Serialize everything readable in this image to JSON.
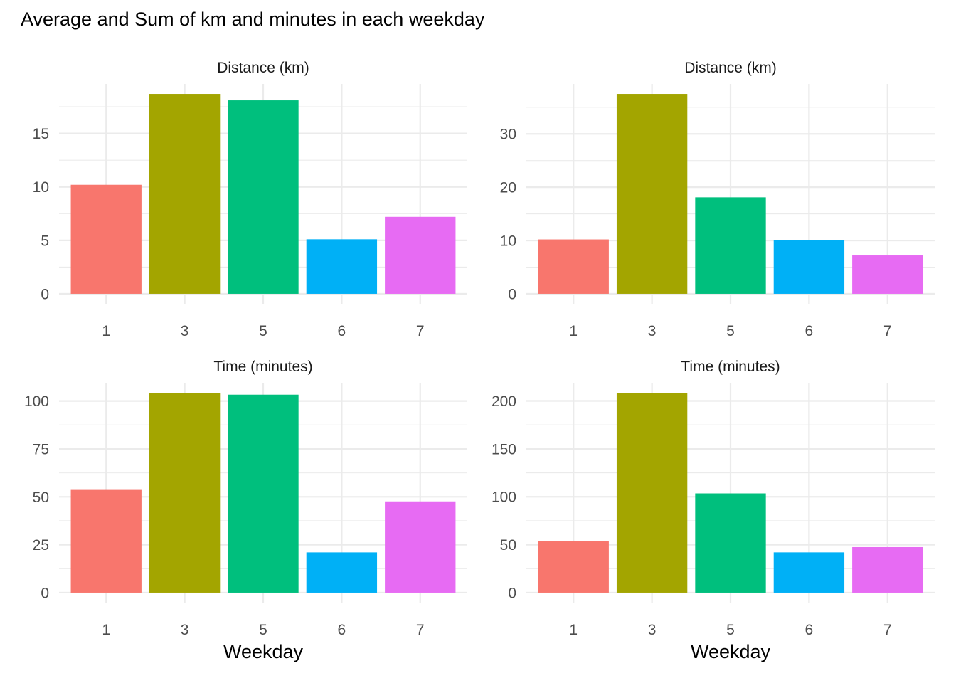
{
  "title": "Average and Sum of km and minutes in each weekday",
  "chart_data": [
    {
      "type": "bar",
      "panel": "top-left",
      "title": "Distance (km)",
      "xlabel": "",
      "ylabel": "",
      "categories": [
        "1",
        "3",
        "5",
        "6",
        "7"
      ],
      "values": [
        10.2,
        18.7,
        18.1,
        5.1,
        7.2
      ],
      "colors": [
        "#F8766D",
        "#A3A500",
        "#00BF7D",
        "#00B0F6",
        "#E76BF3"
      ],
      "ylim": [
        0,
        18.7
      ],
      "yticks": [
        0,
        5,
        10,
        15
      ],
      "grid": true,
      "legend": "none"
    },
    {
      "type": "bar",
      "panel": "top-right",
      "title": "Distance (km)",
      "xlabel": "",
      "ylabel": "",
      "categories": [
        "1",
        "3",
        "5",
        "6",
        "7"
      ],
      "values": [
        10.2,
        37.5,
        18.1,
        10.1,
        7.2
      ],
      "colors": [
        "#F8766D",
        "#A3A500",
        "#00BF7D",
        "#00B0F6",
        "#E76BF3"
      ],
      "ylim": [
        0,
        37.5
      ],
      "yticks": [
        0,
        10,
        20,
        30
      ],
      "grid": true,
      "legend": "none"
    },
    {
      "type": "bar",
      "panel": "bottom-left",
      "title": "Time (minutes)",
      "xlabel": "Weekday",
      "ylabel": "",
      "categories": [
        "1",
        "3",
        "5",
        "6",
        "7"
      ],
      "values": [
        53.6,
        104.3,
        103.3,
        21,
        47.6
      ],
      "colors": [
        "#F8766D",
        "#A3A500",
        "#00BF7D",
        "#00B0F6",
        "#E76BF3"
      ],
      "ylim": [
        0,
        104.3
      ],
      "yticks": [
        0,
        25,
        50,
        75,
        100
      ],
      "grid": true,
      "legend": "none"
    },
    {
      "type": "bar",
      "panel": "bottom-right",
      "title": "Time (minutes)",
      "xlabel": "Weekday",
      "ylabel": "",
      "categories": [
        "1",
        "3",
        "5",
        "6",
        "7"
      ],
      "values": [
        54,
        208.5,
        103.5,
        42,
        47.5
      ],
      "colors": [
        "#F8766D",
        "#A3A500",
        "#00BF7D",
        "#00B0F6",
        "#E76BF3"
      ],
      "ylim": [
        0,
        208.5
      ],
      "yticks": [
        0,
        50,
        100,
        150,
        200
      ],
      "grid": true,
      "legend": "none"
    }
  ]
}
